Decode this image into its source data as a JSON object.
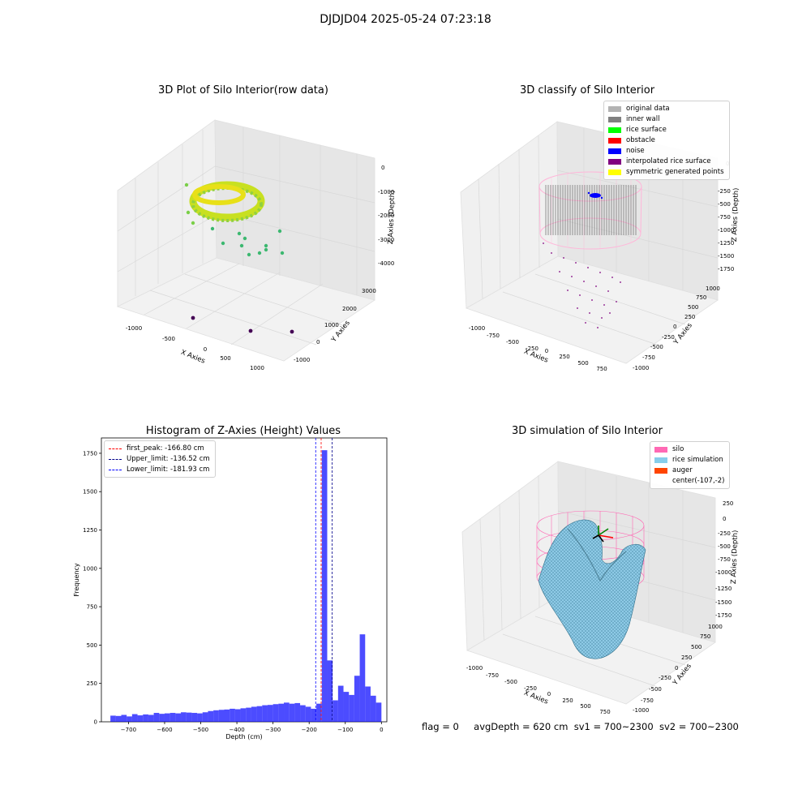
{
  "suptitle": "DJDJD04 2025-05-24 07:23:18",
  "panels": {
    "raw": {
      "title": "3D Plot of Silo Interior(row data)",
      "xlabel": "X Axies",
      "ylabel": "Y Axies",
      "zlabel": "Z Axies (Depth)",
      "xticks": [
        "-1000",
        "-500",
        "0",
        "500",
        "1000"
      ],
      "yticks": [
        "-1000",
        "0",
        "1000",
        "2000",
        "3000"
      ],
      "zticks": [
        "0",
        "-1000",
        "-2000",
        "-3000",
        "-4000"
      ]
    },
    "classify": {
      "title": "3D classify of Silo Interior",
      "xlabel": "X Axies",
      "ylabel": "Y Axies",
      "zlabel": "Z Axies (Depth)",
      "xticks": [
        "-1000",
        "-750",
        "-500",
        "-250",
        "0",
        "250",
        "500",
        "750"
      ],
      "yticks": [
        "-1000",
        "-750",
        "-500",
        "-250",
        "0",
        "250",
        "500",
        "750",
        "1000"
      ],
      "zticks": [
        "0",
        "-250",
        "-500",
        "-750",
        "-1000",
        "-1250",
        "-1500",
        "-1750"
      ],
      "legend": [
        {
          "label": "original data",
          "color": "#b3b3b3"
        },
        {
          "label": "inner wall",
          "color": "#808080"
        },
        {
          "label": "rice surface",
          "color": "#00ff00"
        },
        {
          "label": "obstacle",
          "color": "#ff0000"
        },
        {
          "label": "noise",
          "color": "#0000ff"
        },
        {
          "label": "interpolated rice surface",
          "color": "#800080"
        },
        {
          "label": "symmetric generated points",
          "color": "#ffff00"
        }
      ]
    },
    "sim": {
      "title": "3D simulation of Silo Interior",
      "xlabel": "X Axies",
      "ylabel": "Y Axies",
      "zlabel": "Z Axies (Depth)",
      "xticks": [
        "-1000",
        "-750",
        "-500",
        "-250",
        "0",
        "250",
        "500",
        "750"
      ],
      "yticks": [
        "-1000",
        "-750",
        "-500",
        "-250",
        "0",
        "250",
        "500",
        "750",
        "1000"
      ],
      "zticks": [
        "250",
        "0",
        "-250",
        "-500",
        "-750",
        "-1000",
        "-1250",
        "-1500",
        "-1750"
      ],
      "legend": [
        {
          "label": "silo",
          "color": "#ff69b4"
        },
        {
          "label": "rice simulation",
          "color": "#87ceeb"
        },
        {
          "label": "auger",
          "color": "#ff4500"
        },
        {
          "label": "center(-107,-2)",
          "color": ""
        }
      ]
    }
  },
  "chart_data": {
    "type": "bar",
    "title": "Histogram of Z-Axies (Height) Values",
    "xlabel": "Depth (cm)",
    "ylabel": "Frequency",
    "xlim": [
      -775,
      15
    ],
    "ylim": [
      0,
      1850
    ],
    "xticks": [
      -700,
      -600,
      -500,
      -400,
      -300,
      -200,
      -100,
      0
    ],
    "yticks": [
      0,
      250,
      500,
      750,
      1000,
      1250,
      1500,
      1750
    ],
    "bar_color": "#0000ff",
    "bin_width": 15,
    "bins_start": [
      -750,
      -735,
      -720,
      -705,
      -690,
      -675,
      -660,
      -645,
      -630,
      -615,
      -600,
      -585,
      -570,
      -555,
      -540,
      -525,
      -510,
      -495,
      -480,
      -465,
      -450,
      -435,
      -420,
      -405,
      -390,
      -375,
      -360,
      -345,
      -330,
      -315,
      -300,
      -285,
      -270,
      -255,
      -240,
      -225,
      -210,
      -195,
      -180,
      -165,
      -150,
      -135,
      -120,
      -105,
      -90,
      -75,
      -60,
      -45,
      -30,
      -15
    ],
    "counts": [
      40,
      38,
      45,
      35,
      50,
      42,
      48,
      45,
      58,
      52,
      55,
      58,
      55,
      62,
      60,
      58,
      55,
      62,
      70,
      75,
      78,
      80,
      85,
      82,
      88,
      92,
      98,
      102,
      108,
      110,
      115,
      118,
      125,
      118,
      122,
      108,
      98,
      85,
      118,
      1770,
      400,
      140,
      235,
      195,
      175,
      300,
      570,
      230,
      170,
      125
    ],
    "vlines": [
      {
        "label": "first_peak: -166.80 cm",
        "x": -166.8,
        "color": "#ff0000"
      },
      {
        "label": "Upper_limit: -136.52 cm",
        "x": -136.52,
        "color": "#00008b"
      },
      {
        "label": "Lower_limit: -181.93 cm",
        "x": -181.93,
        "color": "#0000ff"
      }
    ]
  },
  "footer": {
    "flag": "flag = 0",
    "avg_depth": "avgDepth = 620 cm",
    "sv1": "sv1 = 700~2300",
    "sv2": "sv2 = 700~2300"
  }
}
